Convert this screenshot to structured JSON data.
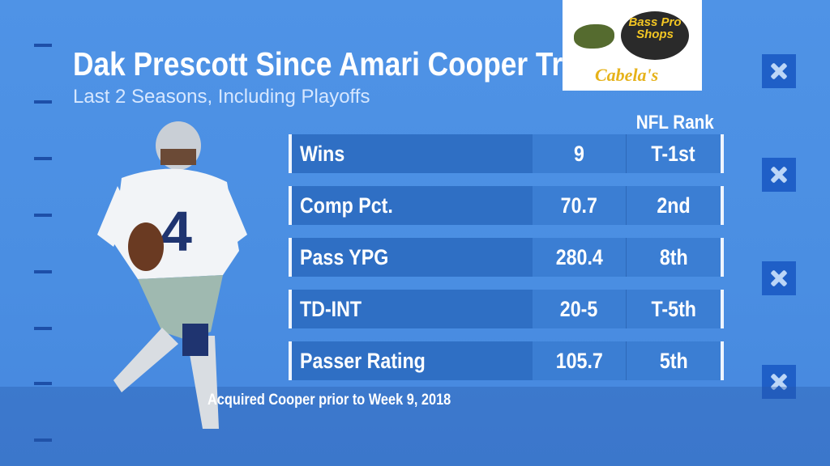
{
  "header": {
    "title": "Dak Prescott Since Amari Cooper Trade",
    "subtitle": "Last 2 Seasons, Including Playoffs"
  },
  "sponsor": {
    "name_top": "Bass Pro Shops",
    "name_bottom": "Cabela's"
  },
  "table": {
    "rank_header": "NFL Rank",
    "rows": [
      [
        "Wins",
        "9",
        "T-1st"
      ],
      [
        "Comp Pct.",
        "70.7",
        "2nd"
      ],
      [
        "Pass YPG",
        "280.4",
        "8th"
      ],
      [
        "TD-INT",
        "20-5",
        "T-5th"
      ],
      [
        "Passer Rating",
        "105.7",
        "5th"
      ]
    ]
  },
  "footnote": "Acquired Cooper prior to Week 9, 2018"
}
